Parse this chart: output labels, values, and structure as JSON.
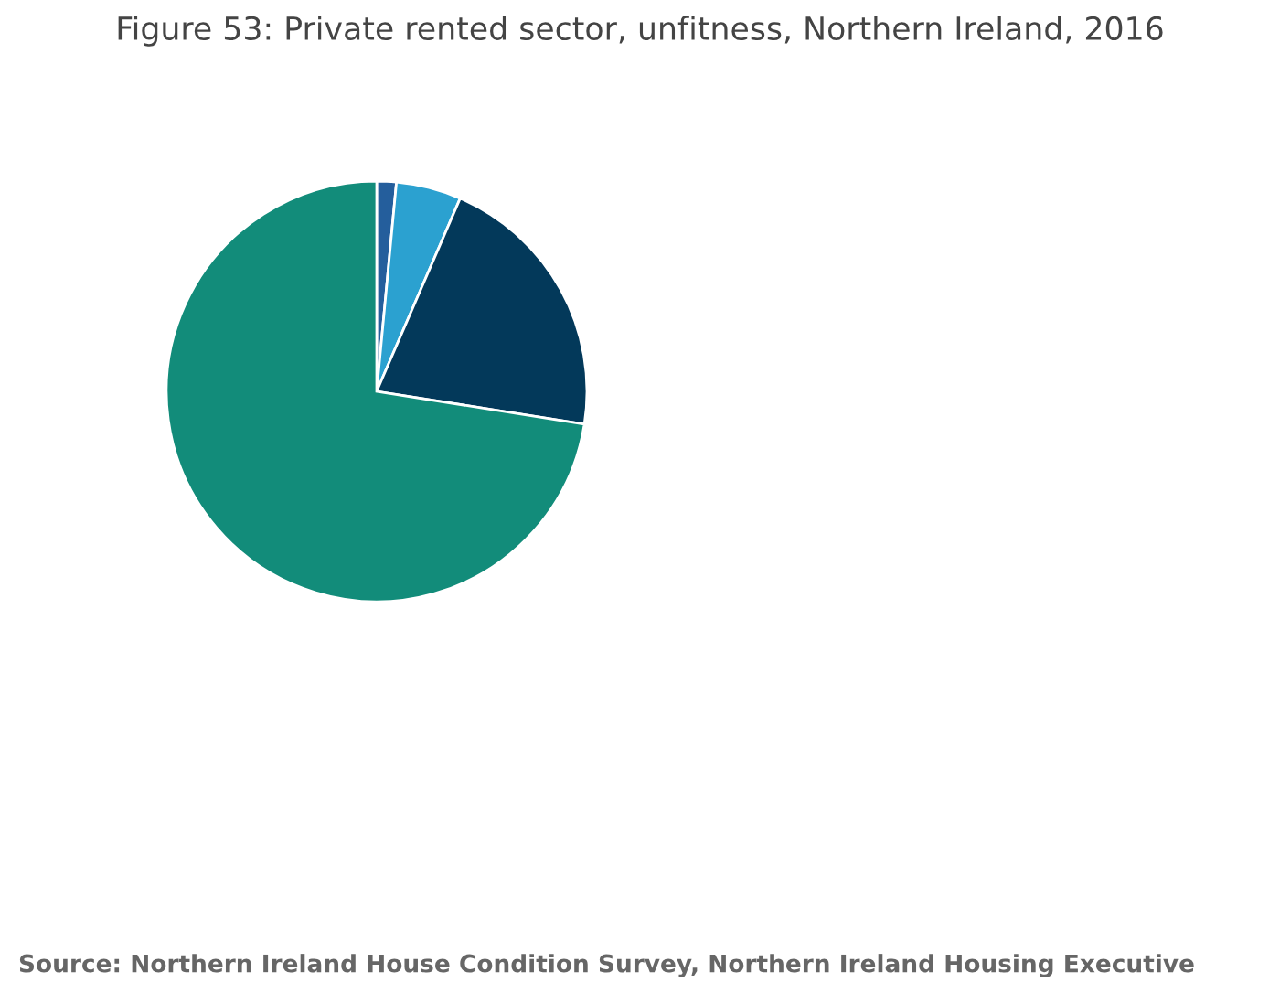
{
  "chart_data": {
    "type": "pie",
    "title": "Figure 53: Private rented sector, unfitness, Northern Ireland, 2016",
    "categories": [
      null,
      null,
      null,
      null
    ],
    "values": [
      1.5,
      5,
      21,
      72.5
    ],
    "colors": [
      "#245e9c",
      "#2ba1d0",
      "#03395a",
      "#128c7a"
    ],
    "annotations": [
      "Source: Northern Ireland House Condition Survey, Northern Ireland Housing Executive"
    ]
  }
}
